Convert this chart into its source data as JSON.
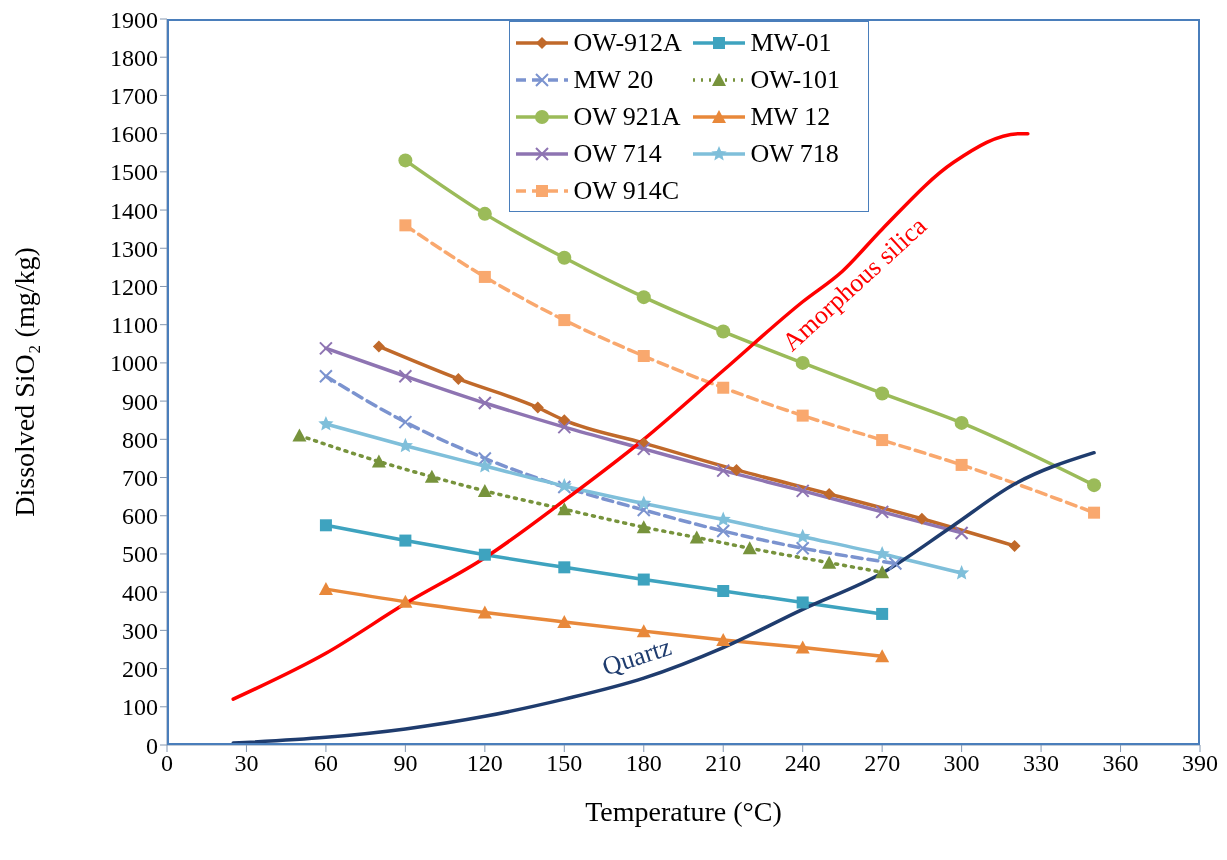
{
  "chart_data": {
    "type": "line",
    "xlabel": "Temperature (°C)",
    "ylabel": "Dissolved SiO₂ (mg/kg)",
    "xlim": [
      0,
      390
    ],
    "xticks": [
      0,
      30,
      60,
      90,
      120,
      150,
      180,
      210,
      240,
      270,
      300,
      330,
      360,
      390
    ],
    "ylim": [
      0,
      1900
    ],
    "yticks": [
      0,
      100,
      200,
      300,
      400,
      500,
      600,
      700,
      800,
      900,
      1000,
      1100,
      1200,
      1300,
      1400,
      1500,
      1600,
      1700,
      1800,
      1900
    ],
    "grid": false,
    "legend": "top",
    "series": [
      {
        "name": "OW-912A",
        "color": "#c0692a",
        "marker": "diamond",
        "x": [
          80,
          110,
          140,
          150,
          180,
          215,
          250,
          285,
          320
        ],
        "values": [
          1043,
          958,
          883,
          850,
          790,
          720,
          657,
          592,
          521
        ]
      },
      {
        "name": "MW-01",
        "color": "#3ea3bf",
        "marker": "square",
        "x": [
          60,
          90,
          120,
          150,
          180,
          210,
          240,
          270
        ],
        "values": [
          575,
          535,
          498,
          465,
          433,
          403,
          373,
          343
        ]
      },
      {
        "name": "MW 20",
        "color": "#7b93cf",
        "marker": "cross",
        "line_style": "dashed",
        "x": [
          60,
          90,
          120,
          150,
          180,
          210,
          240,
          275
        ],
        "values": [
          965,
          845,
          750,
          675,
          615,
          560,
          515,
          475
        ]
      },
      {
        "name": "OW-101",
        "color": "#77933c",
        "marker": "triangle",
        "line_style": "dotted",
        "x": [
          50,
          80,
          100,
          120,
          150,
          180,
          200,
          220,
          250,
          270
        ],
        "values": [
          810,
          742,
          702,
          665,
          617,
          570,
          543,
          515,
          477,
          452
        ]
      },
      {
        "name": "OW 921A",
        "color": "#9bbb59",
        "marker": "circle",
        "x": [
          90,
          120,
          150,
          180,
          210,
          240,
          270,
          300,
          350
        ],
        "values": [
          1530,
          1390,
          1275,
          1172,
          1082,
          1000,
          920,
          843,
          680
        ]
      },
      {
        "name": "MW 12",
        "color": "#e8883a",
        "marker": "triangle",
        "x": [
          60,
          90,
          120,
          150,
          180,
          210,
          240,
          270
        ],
        "values": [
          408,
          375,
          347,
          322,
          298,
          275,
          255,
          232
        ]
      },
      {
        "name": "OW 714",
        "color": "#8e74b2",
        "marker": "cross",
        "x": [
          60,
          90,
          120,
          150,
          180,
          210,
          240,
          270,
          300
        ],
        "values": [
          1038,
          965,
          895,
          832,
          775,
          718,
          665,
          610,
          555
        ]
      },
      {
        "name": "OW 718",
        "color": "#7fbfda",
        "marker": "star",
        "x": [
          60,
          90,
          120,
          150,
          180,
          210,
          240,
          270,
          300
        ],
        "values": [
          840,
          783,
          730,
          678,
          632,
          590,
          545,
          500,
          450
        ]
      },
      {
        "name": "OW 914C",
        "color": "#f9a86e",
        "marker": "square",
        "line_style": "dashed",
        "x": [
          90,
          120,
          150,
          180,
          210,
          240,
          270,
          300,
          350
        ],
        "values": [
          1360,
          1225,
          1112,
          1018,
          935,
          862,
          798,
          733,
          608
        ]
      },
      {
        "name": "Amorphous silica",
        "color": "#ff0000",
        "marker": "none",
        "x": [
          25,
          60,
          90,
          120,
          150,
          180,
          210,
          240,
          255,
          270,
          297,
          322,
          325
        ],
        "values": [
          120,
          240,
          370,
          490,
          640,
          800,
          980,
          1160,
          1240,
          1350,
          1525,
          1600,
          1600
        ]
      },
      {
        "name": "Quartz",
        "color": "#1f3c6e",
        "marker": "none",
        "x": [
          25,
          60,
          90,
          120,
          150,
          180,
          210,
          240,
          270,
          296,
          320,
          350
        ],
        "values": [
          5,
          20,
          42,
          75,
          120,
          175,
          255,
          355,
          450,
          570,
          683,
          765
        ]
      }
    ]
  }
}
